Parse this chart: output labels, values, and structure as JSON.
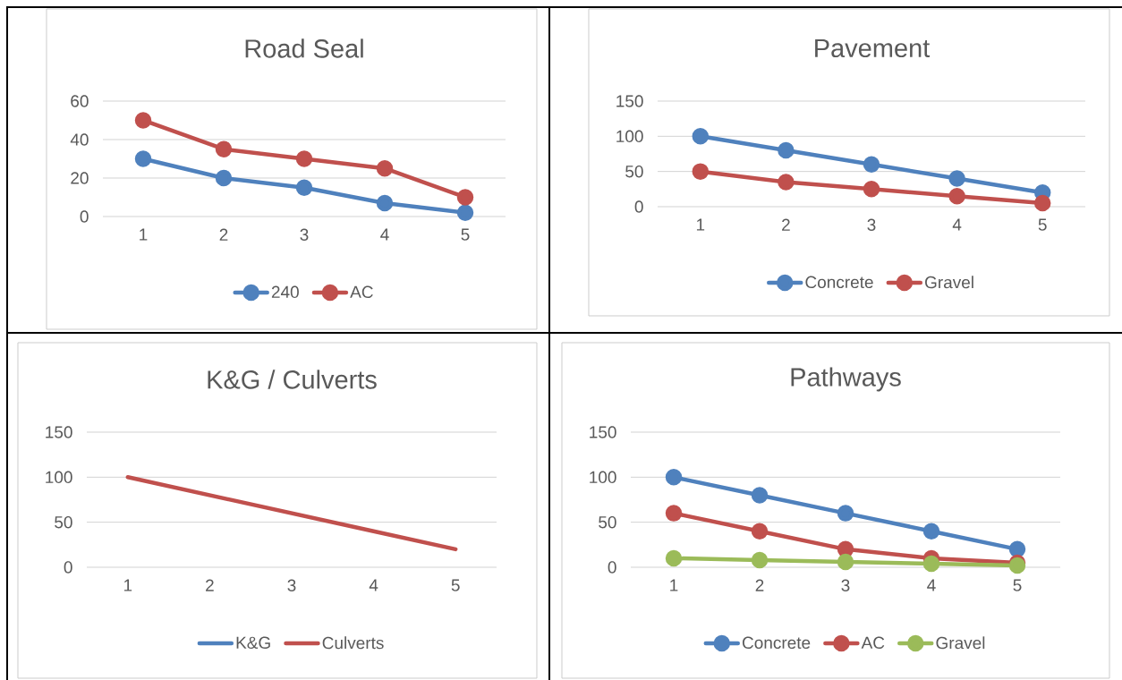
{
  "chart_data": [
    {
      "type": "line",
      "title": "Road Seal",
      "categories": [
        "1",
        "2",
        "3",
        "4",
        "5"
      ],
      "ylim": [
        0,
        60
      ],
      "yticks": [
        0,
        20,
        40,
        60
      ],
      "grid": "y",
      "legend": "bottom",
      "marker": "circle",
      "line_style": "solid",
      "series": [
        {
          "name": "240",
          "color": "#4f81bd",
          "values": [
            30,
            20,
            15,
            7,
            2
          ]
        },
        {
          "name": "AC",
          "color": "#c0504d",
          "values": [
            50,
            35,
            30,
            25,
            10
          ]
        }
      ]
    },
    {
      "type": "line",
      "title": "Pavement",
      "categories": [
        "1",
        "2",
        "3",
        "4",
        "5"
      ],
      "ylim": [
        0,
        150
      ],
      "yticks": [
        0,
        50,
        100,
        150
      ],
      "grid": "y",
      "legend": "bottom",
      "marker": "circle",
      "line_style": "solid",
      "series": [
        {
          "name": "Concrete",
          "color": "#4f81bd",
          "values": [
            100,
            80,
            60,
            40,
            20
          ]
        },
        {
          "name": "Gravel",
          "color": "#c0504d",
          "values": [
            50,
            35,
            25,
            15,
            5
          ]
        }
      ]
    },
    {
      "type": "line",
      "title": "K&G / Culverts",
      "categories": [
        "1",
        "2",
        "3",
        "4",
        "5"
      ],
      "ylim": [
        0,
        150
      ],
      "yticks": [
        0,
        50,
        100,
        150
      ],
      "grid": "y",
      "legend": "bottom",
      "marker": "none",
      "line_style": "solid",
      "series": [
        {
          "name": "K&G",
          "color": "#4f81bd",
          "values": [
            null,
            null,
            null,
            null,
            null
          ]
        },
        {
          "name": "Culverts",
          "color": "#c0504d",
          "values": [
            100,
            80,
            60,
            40,
            20
          ]
        }
      ]
    },
    {
      "type": "line",
      "title": "Pathways",
      "categories": [
        "1",
        "2",
        "3",
        "4",
        "5"
      ],
      "ylim": [
        0,
        150
      ],
      "yticks": [
        0,
        50,
        100,
        150
      ],
      "grid": "y",
      "legend": "bottom",
      "marker": "circle",
      "line_style": "solid",
      "series": [
        {
          "name": "Concrete",
          "color": "#4f81bd",
          "values": [
            100,
            80,
            60,
            40,
            20
          ]
        },
        {
          "name": "AC",
          "color": "#c0504d",
          "values": [
            60,
            40,
            20,
            10,
            5
          ]
        },
        {
          "name": "Gravel",
          "color": "#9bbb59",
          "values": [
            10,
            8,
            6,
            4,
            2
          ]
        }
      ]
    }
  ]
}
